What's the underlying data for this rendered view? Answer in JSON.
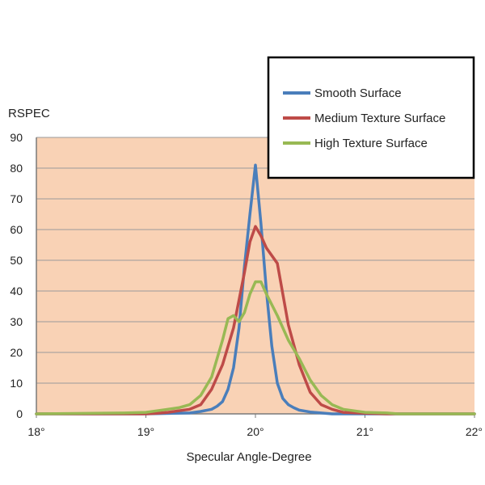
{
  "chart_data": {
    "type": "line",
    "title": "",
    "xlabel": "Specular Angle-Degree",
    "ylabel": "RSPEC",
    "xlim": [
      18,
      22
    ],
    "ylim": [
      0,
      90
    ],
    "x_ticks": [
      18,
      19,
      20,
      21,
      22
    ],
    "x_tick_labels": [
      "18°",
      "19°",
      "20°",
      "21°",
      "22°"
    ],
    "y_ticks": [
      0,
      10,
      20,
      30,
      40,
      50,
      60,
      70,
      80,
      90
    ],
    "y_tick_labels": [
      "0",
      "10",
      "20",
      "30",
      "40",
      "50",
      "60",
      "70",
      "80",
      "90"
    ],
    "grid": "horizontal",
    "legend_position": "top-right",
    "background_color": "#f9d2b5",
    "series": [
      {
        "name": "Smooth Surface",
        "color": "#4a7ebb",
        "x": [
          18.0,
          19.0,
          19.4,
          19.5,
          19.6,
          19.65,
          19.7,
          19.75,
          19.8,
          19.85,
          19.9,
          19.95,
          20.0,
          20.05,
          20.1,
          20.15,
          20.2,
          20.25,
          20.3,
          20.35,
          20.4,
          20.5,
          20.6,
          20.7,
          21.0,
          22.0
        ],
        "y": [
          0,
          0,
          0.3,
          0.8,
          1.5,
          2.5,
          4,
          8,
          15,
          28,
          48,
          65,
          81,
          62,
          40,
          22,
          10,
          5,
          3,
          2,
          1.2,
          0.6,
          0.3,
          0,
          0,
          0
        ]
      },
      {
        "name": "Medium Texture Surface",
        "color": "#be4b48",
        "x": [
          18.0,
          19.0,
          19.1,
          19.2,
          19.3,
          19.4,
          19.5,
          19.6,
          19.7,
          19.8,
          19.9,
          19.95,
          20.0,
          20.05,
          20.1,
          20.2,
          20.3,
          20.4,
          20.5,
          20.6,
          20.7,
          20.8,
          21.0,
          21.2,
          21.3,
          22.0
        ],
        "y": [
          0,
          0,
          0.2,
          0.5,
          1,
          1.5,
          3,
          8,
          16,
          28,
          46,
          56,
          61,
          58,
          54,
          49,
          29,
          16,
          7,
          3,
          1.5,
          0.5,
          0.2,
          0,
          0,
          0
        ]
      },
      {
        "name": "High Texture Surface",
        "color": "#98b954",
        "x": [
          18.0,
          18.8,
          19.0,
          19.1,
          19.2,
          19.3,
          19.4,
          19.5,
          19.6,
          19.7,
          19.75,
          19.8,
          19.85,
          19.9,
          19.95,
          20.0,
          20.05,
          20.1,
          20.2,
          20.3,
          20.4,
          20.5,
          20.6,
          20.7,
          20.8,
          20.9,
          21.0,
          21.2,
          21.3,
          22.0
        ],
        "y": [
          0,
          0.3,
          0.5,
          1,
          1.5,
          2,
          3,
          6,
          12,
          24,
          31,
          32,
          30,
          33,
          39,
          43,
          43,
          39,
          32,
          24,
          18,
          11,
          6,
          3,
          1.5,
          1,
          0.5,
          0.3,
          0,
          0
        ]
      }
    ]
  }
}
